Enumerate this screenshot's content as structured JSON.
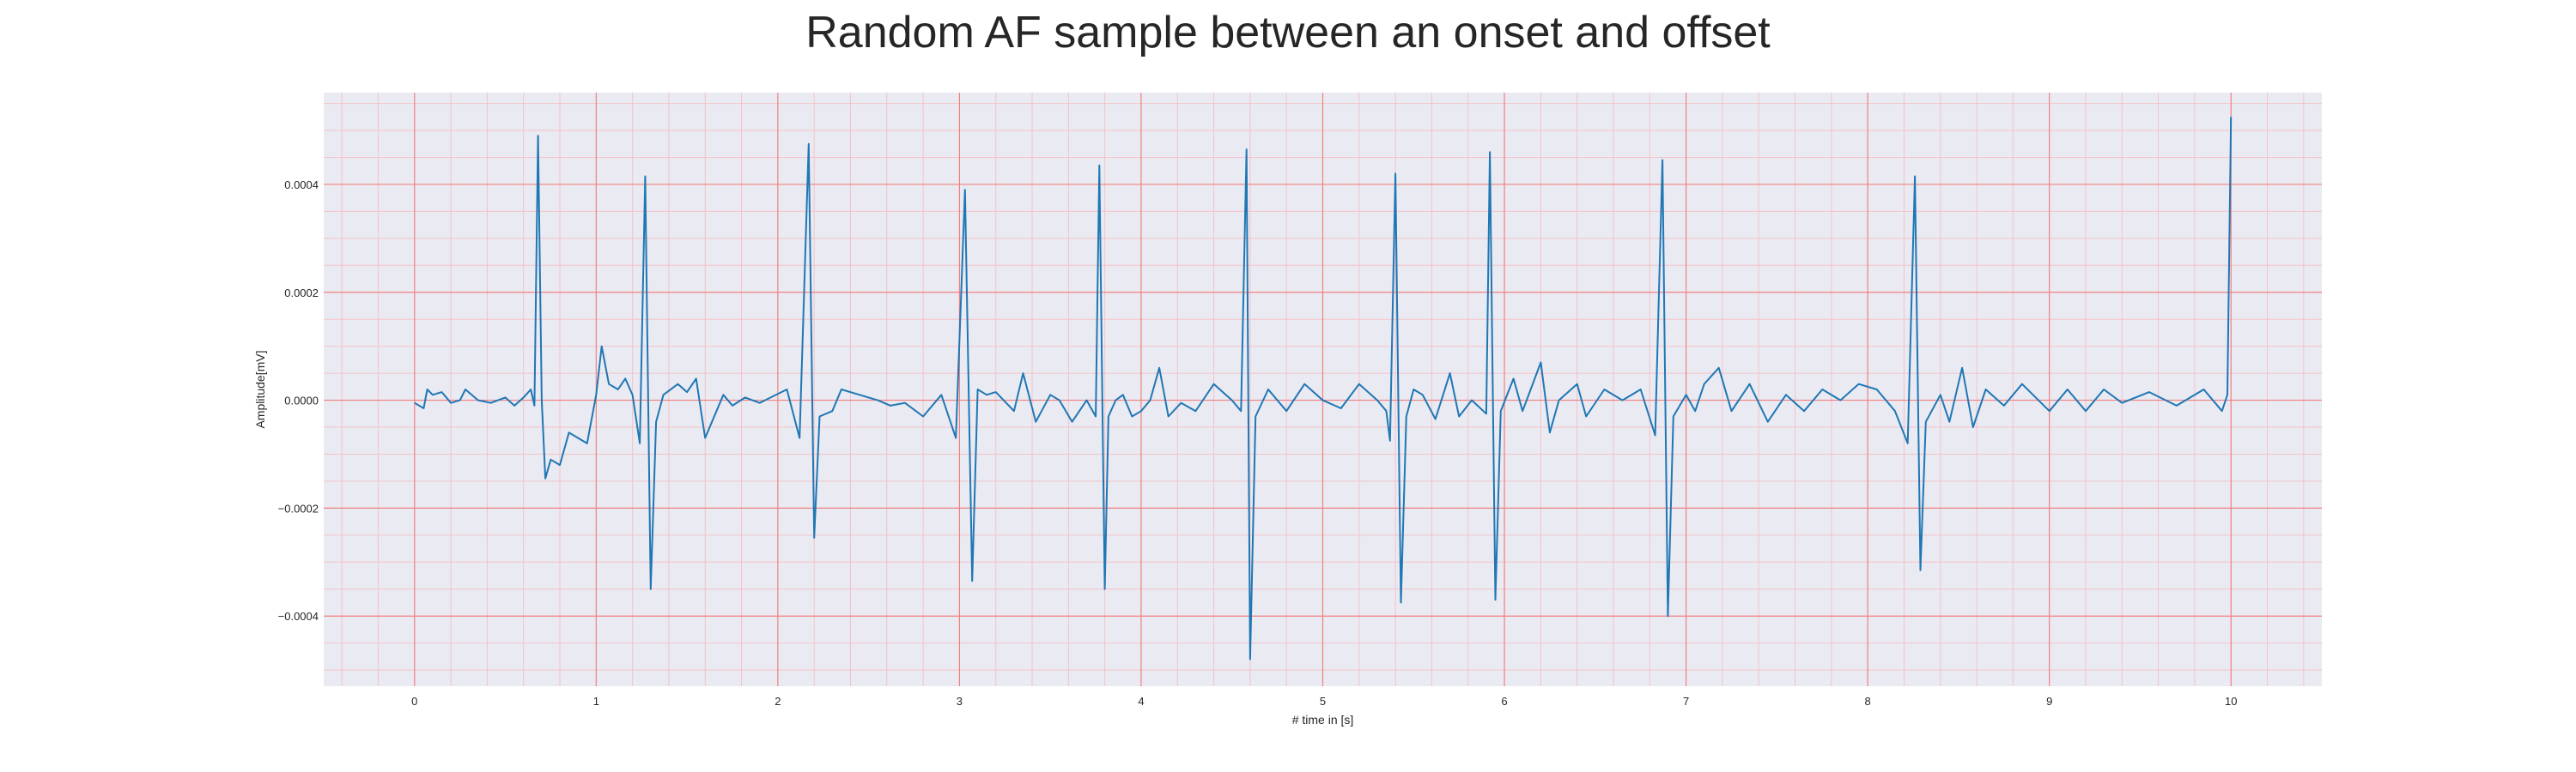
{
  "chart_data": {
    "type": "line",
    "title": "Random AF sample between an onset and offset",
    "xlabel": "# time in [s]",
    "ylabel": "Amplitude[mV]",
    "xlim": [
      -0.5,
      10.5
    ],
    "ylim": [
      -0.00053,
      0.00057
    ],
    "x_ticks": [
      0,
      1,
      2,
      3,
      4,
      5,
      6,
      7,
      8,
      9,
      10
    ],
    "x_tick_labels": [
      "0",
      "1",
      "2",
      "3",
      "4",
      "5",
      "6",
      "7",
      "8",
      "9",
      "10"
    ],
    "y_ticks": [
      -0.0004,
      -0.0002,
      0.0,
      0.0002,
      0.0004
    ],
    "y_tick_labels": [
      "−0.0004",
      "−0.0002",
      "0.0000",
      "0.0002",
      "0.0004"
    ],
    "grid": true,
    "minor_grid": true,
    "colors": {
      "line": "#1f77b4",
      "plot_bg": "#eaeaf2",
      "major_grid": "#f08080",
      "minor_grid": "#f4c2c8"
    },
    "series": [
      {
        "values": [
          [
            0.0,
            -5e-06
          ],
          [
            0.05,
            -1.5e-05
          ],
          [
            0.07,
            2e-05
          ],
          [
            0.1,
            1e-05
          ],
          [
            0.15,
            1.5e-05
          ],
          [
            0.2,
            -5e-06
          ],
          [
            0.25,
            0.0
          ],
          [
            0.28,
            2e-05
          ],
          [
            0.35,
            0.0
          ],
          [
            0.42,
            -5e-06
          ],
          [
            0.5,
            5e-06
          ],
          [
            0.55,
            -1e-05
          ],
          [
            0.6,
            5e-06
          ],
          [
            0.64,
            2e-05
          ],
          [
            0.66,
            -1e-05
          ],
          [
            0.68,
            0.00049
          ],
          [
            0.7,
            0.0
          ],
          [
            0.72,
            -0.000145
          ],
          [
            0.75,
            -0.00011
          ],
          [
            0.8,
            -0.00012
          ],
          [
            0.85,
            -6e-05
          ],
          [
            0.9,
            -7e-05
          ],
          [
            0.95,
            -8e-05
          ],
          [
            1.0,
            1e-05
          ],
          [
            1.03,
            0.0001
          ],
          [
            1.07,
            3e-05
          ],
          [
            1.12,
            2e-05
          ],
          [
            1.16,
            4e-05
          ],
          [
            1.2,
            1e-05
          ],
          [
            1.24,
            -8e-05
          ],
          [
            1.27,
            0.000415
          ],
          [
            1.3,
            -0.00035
          ],
          [
            1.33,
            -4e-05
          ],
          [
            1.37,
            1e-05
          ],
          [
            1.45,
            3e-05
          ],
          [
            1.5,
            1.5e-05
          ],
          [
            1.55,
            4e-05
          ],
          [
            1.6,
            -7e-05
          ],
          [
            1.7,
            1e-05
          ],
          [
            1.75,
            -1e-05
          ],
          [
            1.82,
            5e-06
          ],
          [
            1.9,
            -5e-06
          ],
          [
            2.05,
            2e-05
          ],
          [
            2.12,
            -7e-05
          ],
          [
            2.17,
            0.000475
          ],
          [
            2.2,
            -0.000255
          ],
          [
            2.23,
            -3e-05
          ],
          [
            2.3,
            -2e-05
          ],
          [
            2.35,
            2e-05
          ],
          [
            2.45,
            1e-05
          ],
          [
            2.55,
            0.0
          ],
          [
            2.62,
            -1e-05
          ],
          [
            2.7,
            -5e-06
          ],
          [
            2.8,
            -3e-05
          ],
          [
            2.9,
            1e-05
          ],
          [
            2.98,
            -7e-05
          ],
          [
            3.03,
            0.00039
          ],
          [
            3.07,
            -0.000335
          ],
          [
            3.1,
            2e-05
          ],
          [
            3.15,
            1e-05
          ],
          [
            3.2,
            1.5e-05
          ],
          [
            3.3,
            -2e-05
          ],
          [
            3.35,
            5e-05
          ],
          [
            3.42,
            -4e-05
          ],
          [
            3.5,
            1e-05
          ],
          [
            3.55,
            0.0
          ],
          [
            3.62,
            -4e-05
          ],
          [
            3.7,
            0.0
          ],
          [
            3.75,
            -3e-05
          ],
          [
            3.77,
            0.000435
          ],
          [
            3.8,
            -0.00035
          ],
          [
            3.82,
            -3e-05
          ],
          [
            3.86,
            0.0
          ],
          [
            3.9,
            1e-05
          ],
          [
            3.95,
            -3e-05
          ],
          [
            4.0,
            -2e-05
          ],
          [
            4.05,
            0.0
          ],
          [
            4.1,
            6e-05
          ],
          [
            4.15,
            -3e-05
          ],
          [
            4.22,
            -5e-06
          ],
          [
            4.3,
            -2e-05
          ],
          [
            4.4,
            3e-05
          ],
          [
            4.5,
            0.0
          ],
          [
            4.55,
            -2e-05
          ],
          [
            4.58,
            0.000465
          ],
          [
            4.6,
            -0.00048
          ],
          [
            4.63,
            -3e-05
          ],
          [
            4.7,
            2e-05
          ],
          [
            4.8,
            -2e-05
          ],
          [
            4.9,
            3e-05
          ],
          [
            5.0,
            0.0
          ],
          [
            5.1,
            -1.5e-05
          ],
          [
            5.2,
            3e-05
          ],
          [
            5.3,
            0.0
          ],
          [
            5.35,
            -2e-05
          ],
          [
            5.37,
            -7.5e-05
          ],
          [
            5.4,
            0.00042
          ],
          [
            5.43,
            -0.000375
          ],
          [
            5.46,
            -3e-05
          ],
          [
            5.5,
            2e-05
          ],
          [
            5.55,
            1e-05
          ],
          [
            5.62,
            -3.5e-05
          ],
          [
            5.7,
            5e-05
          ],
          [
            5.75,
            -3e-05
          ],
          [
            5.82,
            0.0
          ],
          [
            5.9,
            -2.5e-05
          ],
          [
            5.92,
            0.00046
          ],
          [
            5.95,
            -0.00037
          ],
          [
            5.98,
            -2e-05
          ],
          [
            6.05,
            4e-05
          ],
          [
            6.1,
            -2e-05
          ],
          [
            6.2,
            7e-05
          ],
          [
            6.25,
            -6e-05
          ],
          [
            6.3,
            0.0
          ],
          [
            6.4,
            3e-05
          ],
          [
            6.45,
            -3e-05
          ],
          [
            6.55,
            2e-05
          ],
          [
            6.65,
            0.0
          ],
          [
            6.75,
            2e-05
          ],
          [
            6.83,
            -6.5e-05
          ],
          [
            6.87,
            0.000445
          ],
          [
            6.9,
            -0.0004
          ],
          [
            6.93,
            -3e-05
          ],
          [
            7.0,
            1e-05
          ],
          [
            7.05,
            -2e-05
          ],
          [
            7.1,
            3e-05
          ],
          [
            7.18,
            6e-05
          ],
          [
            7.25,
            -2e-05
          ],
          [
            7.35,
            3e-05
          ],
          [
            7.45,
            -4e-05
          ],
          [
            7.55,
            1e-05
          ],
          [
            7.65,
            -2e-05
          ],
          [
            7.75,
            2e-05
          ],
          [
            7.85,
            0.0
          ],
          [
            7.95,
            3e-05
          ],
          [
            8.05,
            2e-05
          ],
          [
            8.15,
            -2e-05
          ],
          [
            8.22,
            -8e-05
          ],
          [
            8.26,
            0.000415
          ],
          [
            8.29,
            -0.000315
          ],
          [
            8.32,
            -4e-05
          ],
          [
            8.4,
            1e-05
          ],
          [
            8.45,
            -4e-05
          ],
          [
            8.52,
            6e-05
          ],
          [
            8.58,
            -5e-05
          ],
          [
            8.65,
            2e-05
          ],
          [
            8.75,
            -1e-05
          ],
          [
            8.85,
            3e-05
          ],
          [
            9.0,
            -2e-05
          ],
          [
            9.1,
            2e-05
          ],
          [
            9.2,
            -2e-05
          ],
          [
            9.3,
            2e-05
          ],
          [
            9.4,
            -5e-06
          ],
          [
            9.55,
            1.5e-05
          ],
          [
            9.7,
            -1e-05
          ],
          [
            9.85,
            2e-05
          ],
          [
            9.95,
            -2e-05
          ],
          [
            9.98,
            1e-05
          ],
          [
            10.0,
            0.000525
          ]
        ]
      }
    ]
  }
}
